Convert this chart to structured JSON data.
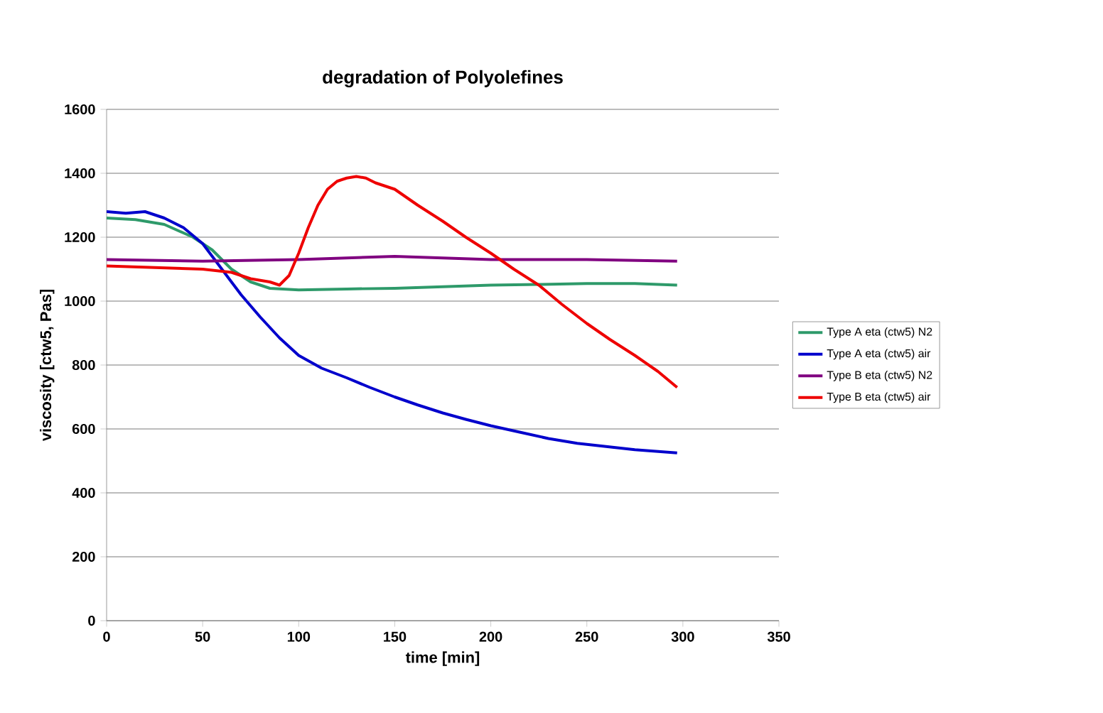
{
  "chart_data": {
    "type": "line",
    "title": "degradation of Polyolefines",
    "xlabel": "time [min]",
    "ylabel": "viscosity [ctw5, Pas]",
    "xlim": [
      0,
      350
    ],
    "ylim": [
      0,
      1600
    ],
    "xticks": [
      0,
      50,
      100,
      150,
      200,
      250,
      300,
      350
    ],
    "yticks": [
      0,
      200,
      400,
      600,
      800,
      1000,
      1200,
      1400,
      1600
    ],
    "grid": "y",
    "legend": "right",
    "marker": "none",
    "line_style": "solid",
    "series": [
      {
        "name": "Type A eta (ctw5) N2",
        "color": "#2e9a6a",
        "x": [
          0,
          15,
          30,
          45,
          55,
          65,
          75,
          85,
          100,
          125,
          150,
          175,
          200,
          225,
          250,
          275,
          297
        ],
        "values": [
          1260,
          1255,
          1240,
          1200,
          1160,
          1100,
          1060,
          1040,
          1035,
          1038,
          1040,
          1045,
          1050,
          1052,
          1055,
          1055,
          1050
        ]
      },
      {
        "name": "Type A eta (ctw5) air",
        "color": "#0000cc",
        "x": [
          0,
          10,
          20,
          30,
          40,
          50,
          60,
          70,
          80,
          90,
          100,
          112,
          125,
          137,
          150,
          162,
          175,
          187,
          200,
          215,
          230,
          245,
          260,
          275,
          297
        ],
        "values": [
          1280,
          1275,
          1280,
          1260,
          1230,
          1180,
          1100,
          1020,
          950,
          885,
          830,
          790,
          760,
          730,
          700,
          675,
          650,
          630,
          610,
          590,
          570,
          555,
          545,
          535,
          525
        ]
      },
      {
        "name": "Type B eta (ctw5) N2",
        "color": "#800080",
        "x": [
          0,
          50,
          100,
          150,
          200,
          250,
          297
        ],
        "values": [
          1130,
          1125,
          1130,
          1140,
          1130,
          1130,
          1125
        ]
      },
      {
        "name": "Type B eta (ctw5) air",
        "color": "#ee0000",
        "x": [
          0,
          25,
          50,
          65,
          75,
          85,
          90,
          95,
          100,
          105,
          110,
          115,
          120,
          125,
          130,
          135,
          140,
          150,
          162,
          175,
          187,
          200,
          212,
          225,
          237,
          250,
          262,
          275,
          287,
          297
        ],
        "values": [
          1110,
          1105,
          1100,
          1090,
          1070,
          1060,
          1050,
          1080,
          1150,
          1230,
          1300,
          1350,
          1375,
          1385,
          1390,
          1385,
          1370,
          1350,
          1300,
          1250,
          1200,
          1150,
          1100,
          1050,
          990,
          930,
          880,
          830,
          780,
          730
        ]
      }
    ]
  }
}
